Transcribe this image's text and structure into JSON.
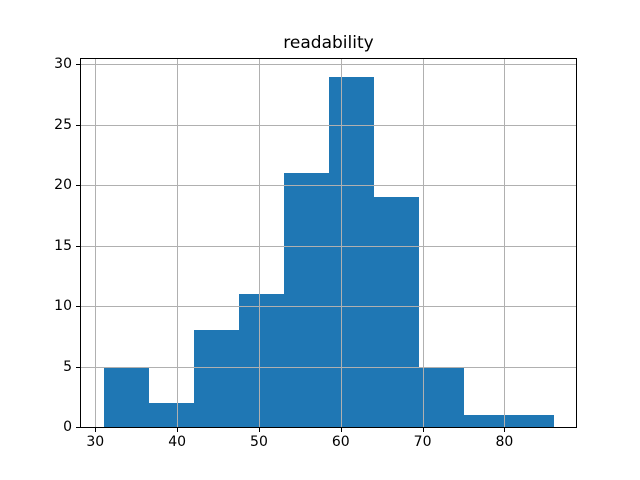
{
  "figure": {
    "background": "#ffffff",
    "spine_color": "#000000",
    "tick_color": "#000000"
  },
  "chart_data": {
    "type": "bar",
    "subtype": "histogram",
    "title": "readability",
    "xlabel": "",
    "ylabel": "",
    "bin_edges": [
      31,
      36.5,
      42,
      47.5,
      53,
      58.5,
      64,
      69.5,
      75,
      80.5,
      86
    ],
    "counts": [
      5,
      2,
      8,
      11,
      21,
      29,
      19,
      5,
      1,
      1
    ],
    "xlim": [
      28.25,
      88.75
    ],
    "ylim": [
      0,
      30.45
    ],
    "xticks": [
      30,
      40,
      50,
      60,
      70,
      80
    ],
    "xtick_labels": [
      "30",
      "40",
      "50",
      "60",
      "70",
      "80"
    ],
    "yticks": [
      0,
      5,
      10,
      15,
      20,
      25,
      30
    ],
    "ytick_labels": [
      "0",
      "5",
      "10",
      "15",
      "20",
      "25",
      "30"
    ],
    "grid": true,
    "grid_over_bars": true,
    "legend": null,
    "bar_color": "#1f77b4",
    "grid_color": "#b0b0b0"
  }
}
